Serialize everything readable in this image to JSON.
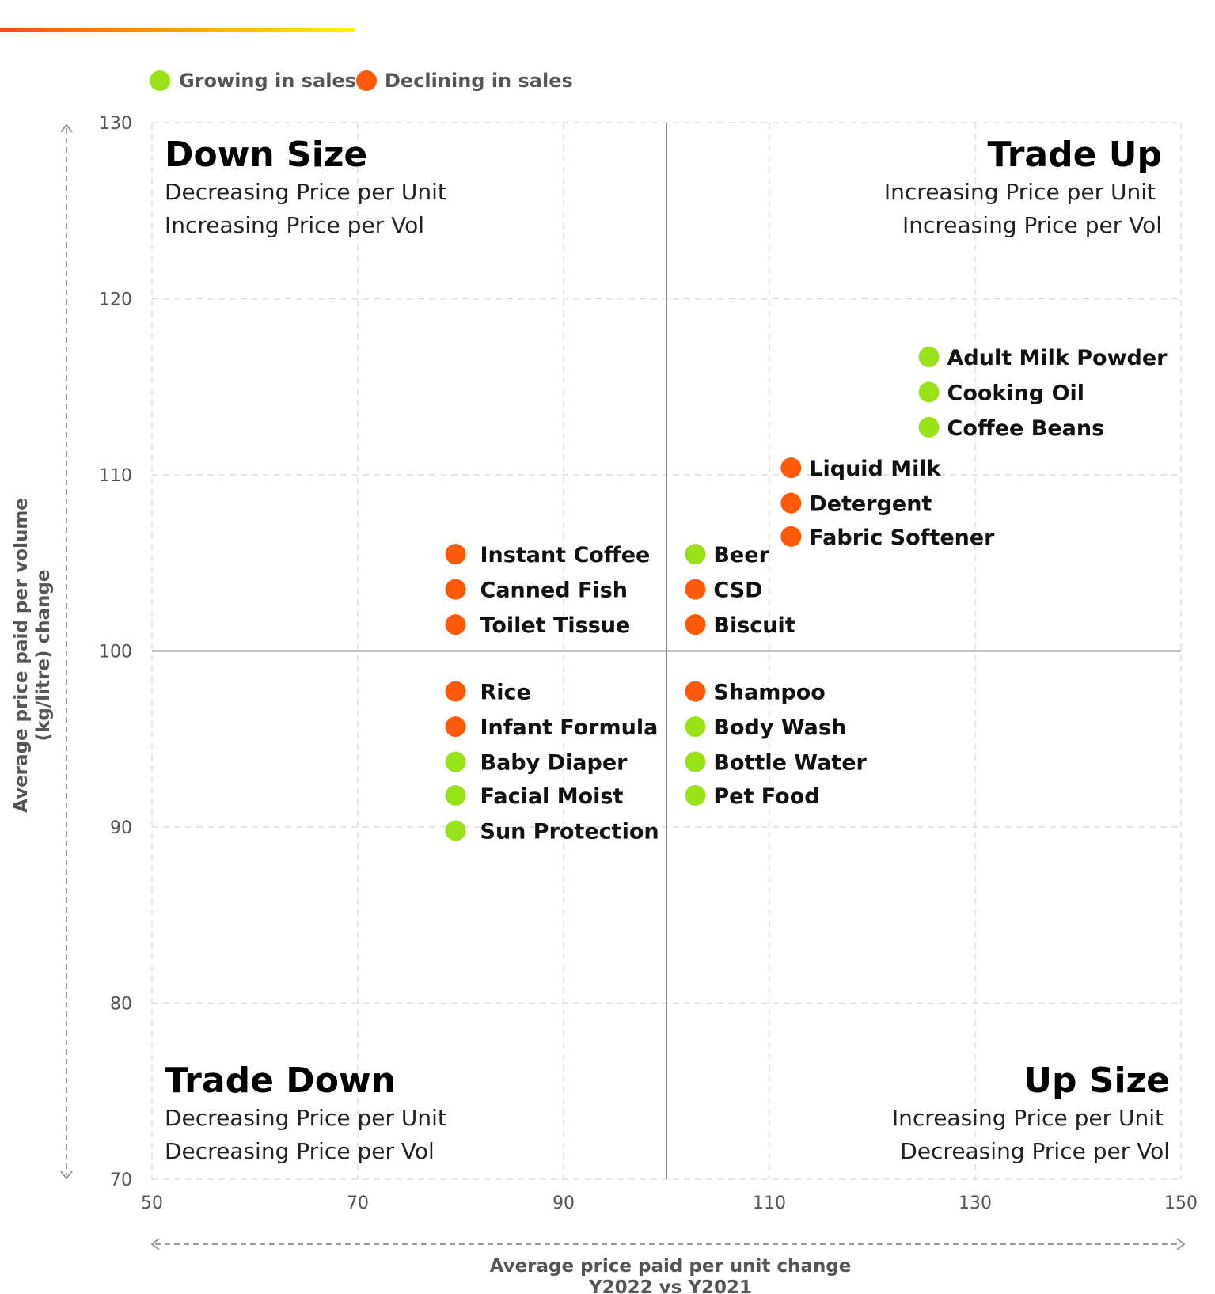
{
  "colors": {
    "growing": "#99E21A",
    "declining": "#FF5A0A",
    "accent_start": "#FF4A10",
    "accent_end": "#FFF200"
  },
  "legend": [
    {
      "label": "Growing in sales",
      "status": "growing"
    },
    {
      "label": "Declining in sales",
      "status": "declining"
    }
  ],
  "quadrants": [
    {
      "title": "Down Size",
      "lines": [
        "Decreasing Price per Unit",
        "Increasing Price per Vol"
      ]
    },
    {
      "title": "Trade Up",
      "lines": [
        "Increasing Price per Unit",
        "Increasing Price per Vol"
      ]
    },
    {
      "title": "Trade Down",
      "lines": [
        "Decreasing Price per Unit",
        "Decreasing Price per Vol"
      ]
    },
    {
      "title": "Up Size",
      "lines": [
        "Increasing Price per Unit",
        "Decreasing Price per Vol"
      ]
    }
  ],
  "chart_data": {
    "type": "scatter",
    "xlabel": [
      "Average price paid per unit change",
      "Y2022 vs Y2021"
    ],
    "ylabel": [
      "Average price paid per volume",
      "(kg/litre) change"
    ],
    "xlim": [
      50,
      150
    ],
    "ylim": [
      70,
      130
    ],
    "x_ticks": [
      50,
      70,
      90,
      110,
      130,
      150
    ],
    "y_ticks": [
      70,
      80,
      90,
      100,
      110,
      120,
      130
    ],
    "reference_lines": {
      "x": 100,
      "y": 100
    },
    "grid": true,
    "legend_position": "top-left",
    "points": [
      {
        "label": "Adult Milk Powder",
        "x": 125.5,
        "y": 116.7,
        "status": "growing"
      },
      {
        "label": "Cooking Oil",
        "x": 125.5,
        "y": 114.7,
        "status": "growing"
      },
      {
        "label": "Coffee Beans",
        "x": 125.5,
        "y": 112.7,
        "status": "growing"
      },
      {
        "label": "Liquid Milk",
        "x": 112.1,
        "y": 110.4,
        "status": "declining"
      },
      {
        "label": "Detergent",
        "x": 112.1,
        "y": 108.4,
        "status": "declining"
      },
      {
        "label": "Fabric Softener",
        "x": 112.1,
        "y": 106.5,
        "status": "declining"
      },
      {
        "label": "Instant Coffee",
        "x": 79.5,
        "y": 105.5,
        "status": "declining"
      },
      {
        "label": "Canned Fish",
        "x": 79.5,
        "y": 103.5,
        "status": "declining"
      },
      {
        "label": "Toilet Tissue",
        "x": 79.5,
        "y": 101.5,
        "status": "declining"
      },
      {
        "label": "Beer",
        "x": 102.8,
        "y": 105.5,
        "status": "growing"
      },
      {
        "label": "CSD",
        "x": 102.8,
        "y": 103.5,
        "status": "declining"
      },
      {
        "label": "Biscuit",
        "x": 102.8,
        "y": 101.5,
        "status": "declining"
      },
      {
        "label": "Rice",
        "x": 79.5,
        "y": 97.7,
        "status": "declining"
      },
      {
        "label": "Infant Formula",
        "x": 79.5,
        "y": 95.7,
        "status": "declining"
      },
      {
        "label": "Baby Diaper",
        "x": 79.5,
        "y": 93.7,
        "status": "growing"
      },
      {
        "label": "Facial Moist",
        "x": 79.5,
        "y": 91.8,
        "status": "growing"
      },
      {
        "label": "Sun Protection",
        "x": 79.5,
        "y": 89.8,
        "status": "growing"
      },
      {
        "label": "Shampoo",
        "x": 102.8,
        "y": 97.7,
        "status": "declining"
      },
      {
        "label": "Body Wash",
        "x": 102.8,
        "y": 95.7,
        "status": "growing"
      },
      {
        "label": "Bottle Water",
        "x": 102.8,
        "y": 93.7,
        "status": "growing"
      },
      {
        "label": "Pet Food",
        "x": 102.8,
        "y": 91.8,
        "status": "growing"
      }
    ]
  }
}
